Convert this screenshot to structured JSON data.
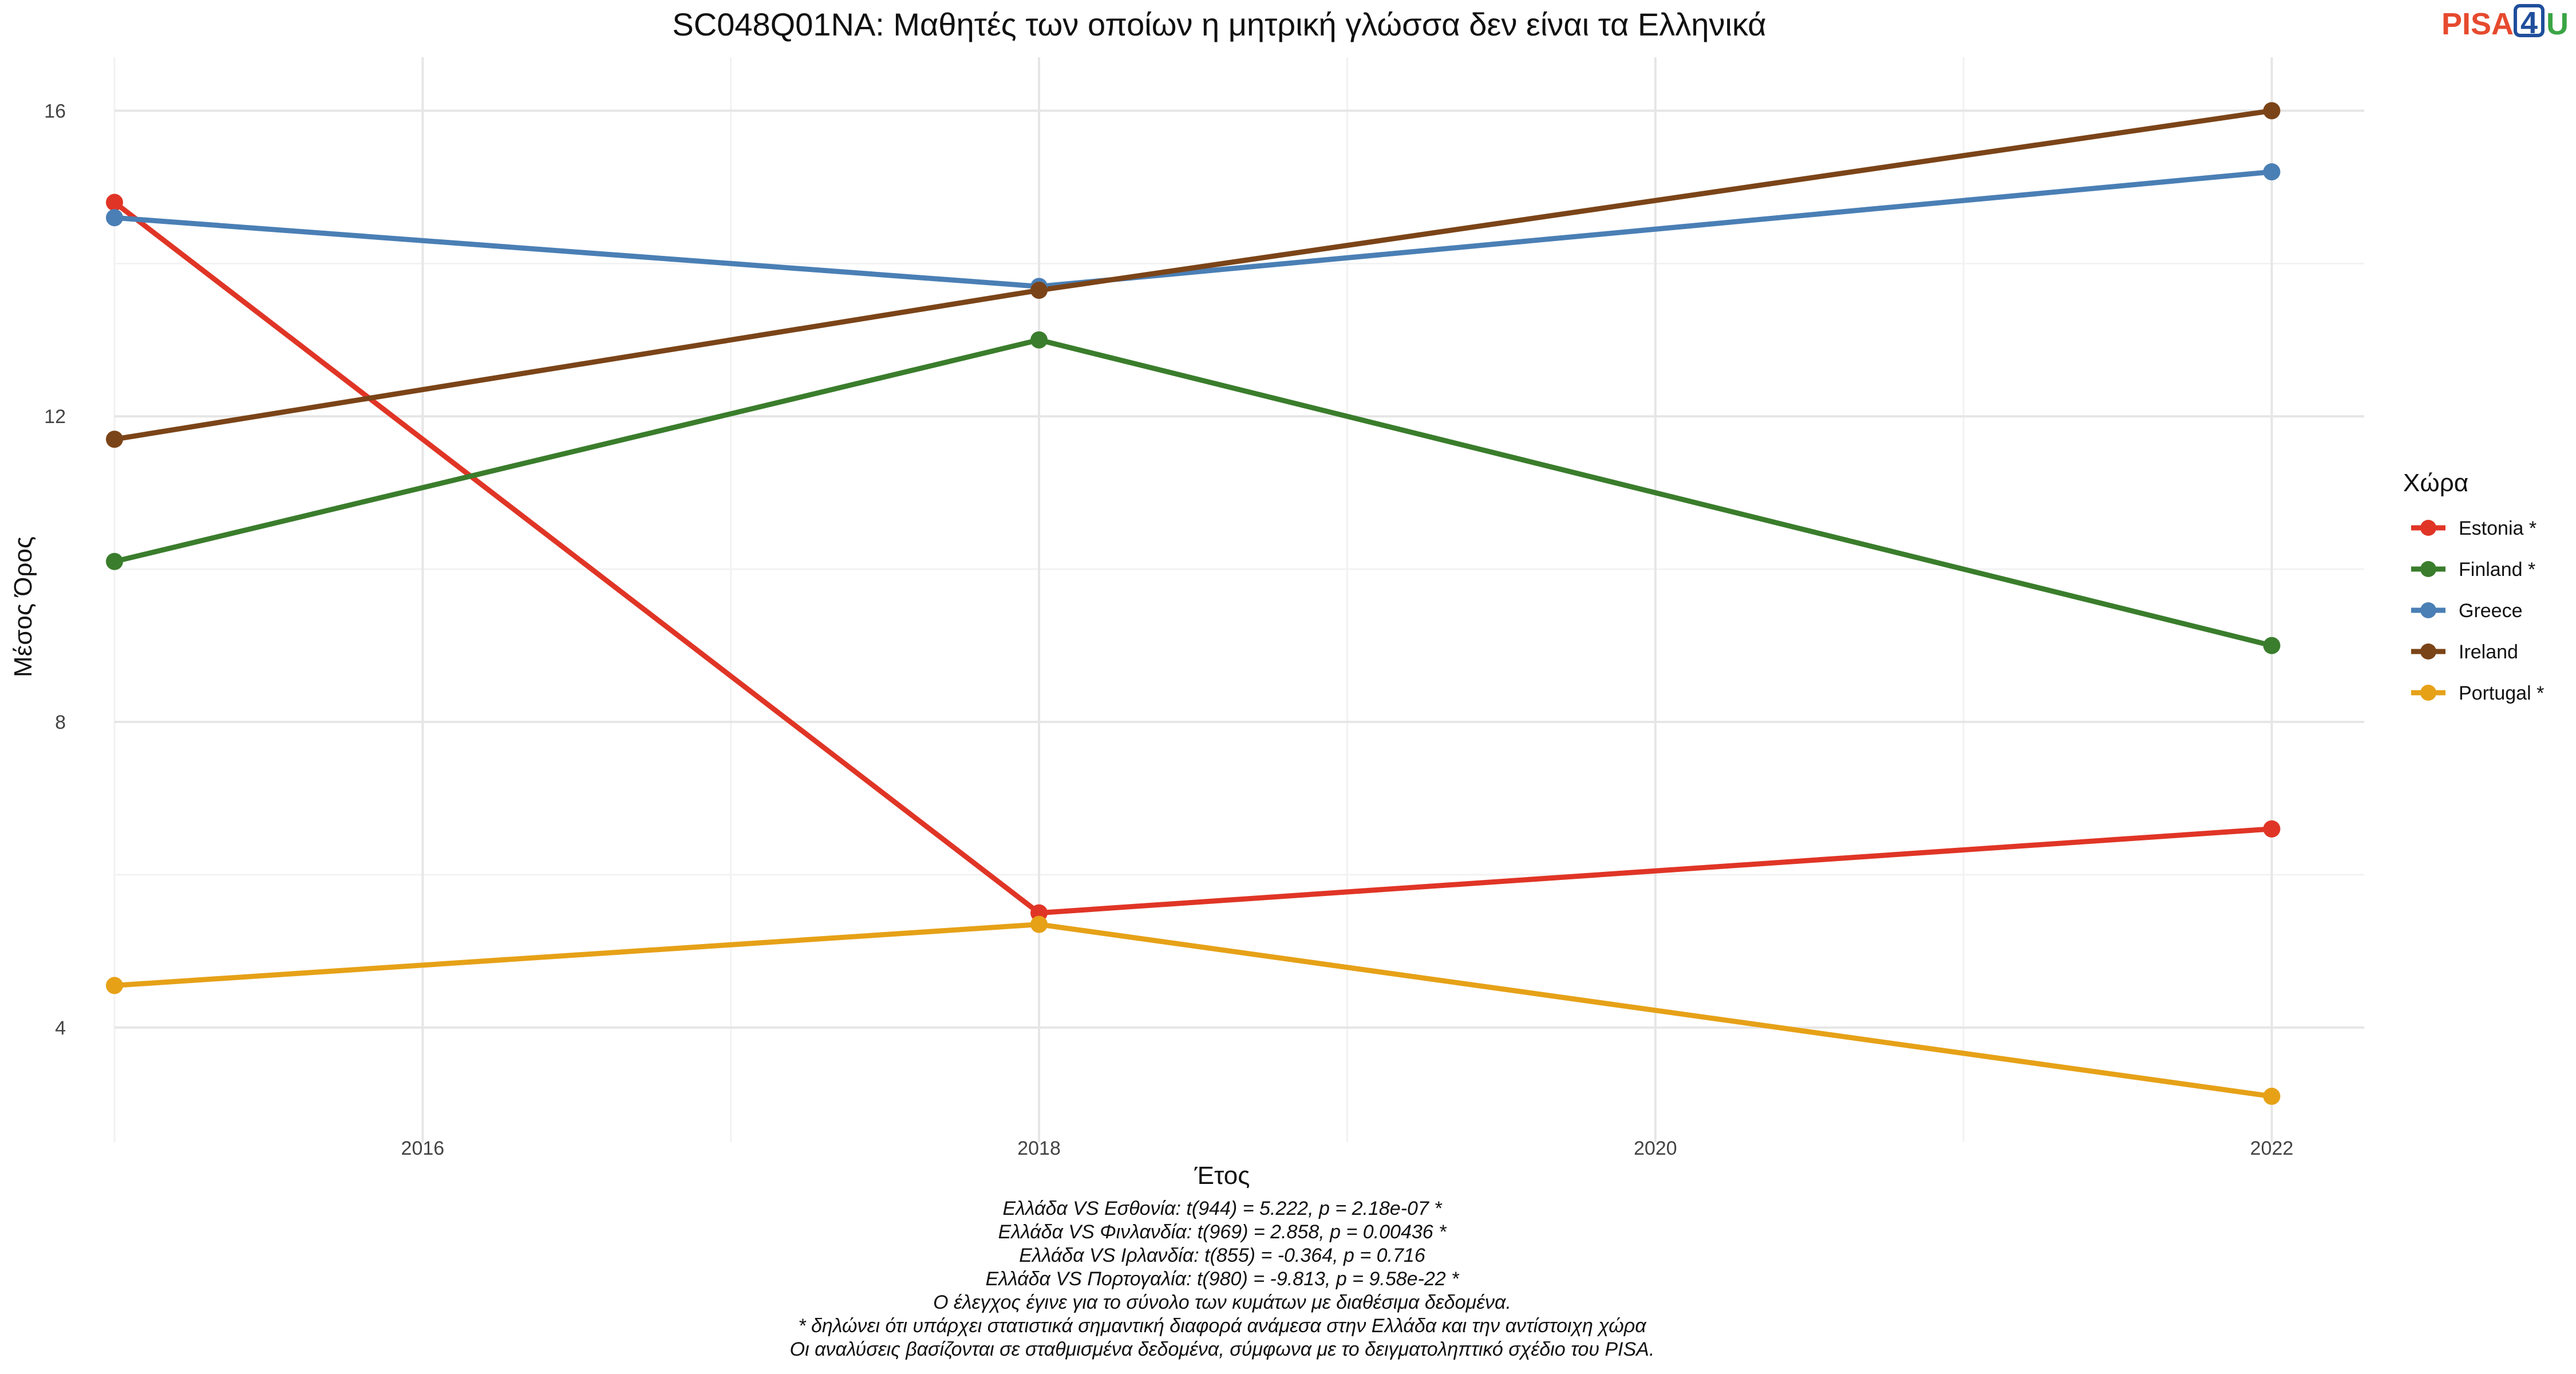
{
  "logo": {
    "text_a": "PISA",
    "text_b": "4",
    "text_c": "U",
    "color_a": "#e64a2e",
    "color_b": "#1f4e9c",
    "color_c": "#3aa545"
  },
  "chart_data": {
    "type": "line",
    "title": "SC048Q01NA: Μαθητές των οποίων η μητρική γλώσσα δεν είναι τα Ελληνικά",
    "xlabel": "Έτος",
    "ylabel": "Μέσος Όρος",
    "xlim": [
      2015,
      2022.3
    ],
    "ylim": [
      2.5,
      16.7
    ],
    "xticks": [
      2016,
      2018,
      2020,
      2022
    ],
    "yticks": [
      4,
      8,
      12,
      16
    ],
    "grid": true,
    "legend": {
      "title": "Χώρα",
      "position": "right"
    },
    "series": [
      {
        "name": "Estonia *",
        "color": "#e03526",
        "x": [
          2015,
          2018,
          2022
        ],
        "y": [
          14.8,
          5.5,
          6.6
        ]
      },
      {
        "name": "Finland *",
        "color": "#3a7d2c",
        "x": [
          2015,
          2018,
          2022
        ],
        "y": [
          10.1,
          13.0,
          9.0
        ]
      },
      {
        "name": "Greece",
        "color": "#4a7fb5",
        "x": [
          2015,
          2018,
          2022
        ],
        "y": [
          14.6,
          13.7,
          15.2
        ]
      },
      {
        "name": "Ireland",
        "color": "#7b4418",
        "x": [
          2015,
          2018,
          2022
        ],
        "y": [
          11.7,
          13.65,
          16.0
        ]
      },
      {
        "name": "Portugal *",
        "color": "#e6a117",
        "x": [
          2015,
          2018,
          2022
        ],
        "y": [
          4.55,
          5.35,
          3.1
        ]
      }
    ],
    "caption": [
      "Ελλάδα VS Εσθονία: t(944) = 5.222, p = 2.18e-07 *",
      "Ελλάδα VS Φινλανδία: t(969) = 2.858, p = 0.00436 *",
      "Ελλάδα VS Ιρλανδία: t(855) = -0.364, p = 0.716",
      "Ελλάδα VS Πορτογαλία: t(980) = -9.813, p = 9.58e-22 *",
      "Ο έλεγχος έγινε για το σύνολο των κυμάτων με διαθέσιμα δεδομένα.",
      "* δηλώνει ότι υπάρχει στατιστικά σημαντική διαφορά ανάμεσα στην Ελλάδα και την αντίστοιχη χώρα",
      "Οι αναλύσεις βασίζονται σε σταθμισμένα δεδομένα, σύμφωνα με το δειγματοληπτικό σχέδιο του PISA."
    ]
  }
}
